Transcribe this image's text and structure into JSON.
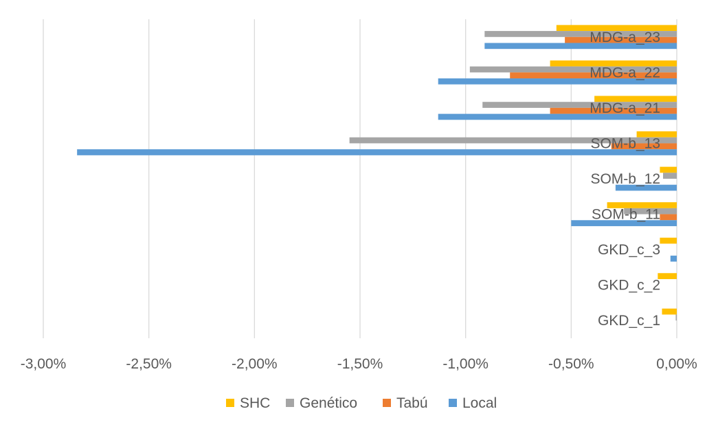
{
  "chart_data": {
    "type": "bar",
    "orientation": "horizontal",
    "categories": [
      "GKD_c_1",
      "GKD_c_2",
      "GKD_c_3",
      "SOM-b_11",
      "SOM-b_12",
      "SOM-b_13",
      "MDG-a_21",
      "MDG-a_22",
      "MDG-a_23"
    ],
    "series": [
      {
        "name": "SHC",
        "color": "#FFC000",
        "values": [
          -0.07,
          -0.09,
          -0.08,
          -0.33,
          -0.08,
          -0.19,
          -0.39,
          -0.6,
          -0.57
        ]
      },
      {
        "name": "Genético",
        "color": "#A5A5A5",
        "values": [
          -0.005,
          0,
          0,
          -0.25,
          -0.065,
          -1.55,
          -0.92,
          -0.98,
          -0.91
        ]
      },
      {
        "name": "Tabú",
        "color": "#ED7D31",
        "values": [
          0,
          0,
          0,
          -0.08,
          0,
          -0.31,
          -0.6,
          -0.79,
          -0.53
        ]
      },
      {
        "name": "Local",
        "color": "#5B9BD5",
        "values": [
          0,
          0,
          -0.03,
          -0.5,
          -0.29,
          -2.84,
          -1.13,
          -1.13,
          -0.91
        ]
      }
    ],
    "xlim": [
      -3.0,
      0.0
    ],
    "xticks": [
      "-3,00%",
      "-2,50%",
      "-2,00%",
      "-1,50%",
      "-1,00%",
      "-0,50%",
      "0,00%"
    ],
    "title": "",
    "xlabel": "",
    "ylabel": "",
    "grid": true,
    "legend_position": "bottom"
  }
}
